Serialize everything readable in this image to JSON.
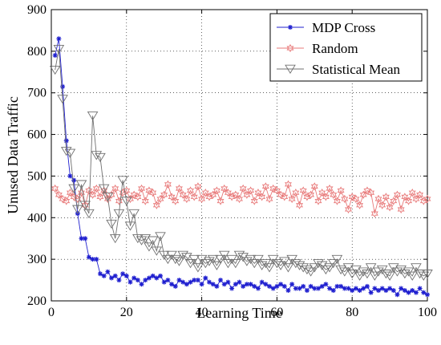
{
  "chart_data": {
    "type": "line",
    "xlabel": "Learning Time",
    "ylabel": "Unused Data Traffic",
    "xlim": [
      0,
      100
    ],
    "ylim": [
      200,
      900
    ],
    "xticks": [
      0,
      20,
      40,
      60,
      80,
      100
    ],
    "yticks": [
      200,
      300,
      400,
      500,
      600,
      700,
      800,
      900
    ],
    "x_tick_labels": [
      "0",
      "20",
      "40",
      "60",
      "80",
      "100"
    ],
    "y_tick_labels": [
      "200",
      "300",
      "400",
      "500",
      "600",
      "700",
      "800",
      "900"
    ],
    "grid": true,
    "legend_position": "top-right",
    "series": [
      {
        "name": "MDP Cross",
        "color": "#1f1fcf",
        "marker": "star",
        "x": [
          1,
          2,
          3,
          4,
          5,
          6,
          7,
          8,
          9,
          10,
          11,
          12,
          13,
          14,
          15,
          16,
          17,
          18,
          19,
          20,
          21,
          22,
          23,
          24,
          25,
          26,
          27,
          28,
          29,
          30,
          31,
          32,
          33,
          34,
          35,
          36,
          37,
          38,
          39,
          40,
          41,
          42,
          43,
          44,
          45,
          46,
          47,
          48,
          49,
          50,
          51,
          52,
          53,
          54,
          55,
          56,
          57,
          58,
          59,
          60,
          61,
          62,
          63,
          64,
          65,
          66,
          67,
          68,
          69,
          70,
          71,
          72,
          73,
          74,
          75,
          76,
          77,
          78,
          79,
          80,
          81,
          82,
          83,
          84,
          85,
          86,
          87,
          88,
          89,
          90,
          91,
          92,
          93,
          94,
          95,
          96,
          97,
          98,
          99,
          100
        ],
        "values": [
          790,
          830,
          715,
          585,
          500,
          490,
          410,
          350,
          350,
          305,
          300,
          300,
          265,
          260,
          270,
          255,
          260,
          250,
          265,
          260,
          245,
          255,
          250,
          240,
          250,
          255,
          260,
          255,
          260,
          245,
          250,
          240,
          235,
          250,
          245,
          240,
          245,
          250,
          250,
          240,
          255,
          245,
          240,
          235,
          250,
          240,
          245,
          230,
          240,
          245,
          235,
          240,
          240,
          235,
          230,
          245,
          240,
          235,
          230,
          235,
          240,
          235,
          225,
          240,
          230,
          230,
          235,
          225,
          235,
          230,
          230,
          235,
          240,
          230,
          225,
          235,
          235,
          230,
          230,
          225,
          230,
          225,
          230,
          235,
          220,
          230,
          225,
          230,
          225,
          230,
          225,
          215,
          230,
          225,
          220,
          225,
          220,
          230,
          220,
          215
        ]
      },
      {
        "name": "Random",
        "color": "#e87a7a",
        "marker": "hexagram",
        "x": [
          1,
          2,
          3,
          4,
          5,
          6,
          7,
          8,
          9,
          10,
          11,
          12,
          13,
          14,
          15,
          16,
          17,
          18,
          19,
          20,
          21,
          22,
          23,
          24,
          25,
          26,
          27,
          28,
          29,
          30,
          31,
          32,
          33,
          34,
          35,
          36,
          37,
          38,
          39,
          40,
          41,
          42,
          43,
          44,
          45,
          46,
          47,
          48,
          49,
          50,
          51,
          52,
          53,
          54,
          55,
          56,
          57,
          58,
          59,
          60,
          61,
          62,
          63,
          64,
          65,
          66,
          67,
          68,
          69,
          70,
          71,
          72,
          73,
          74,
          75,
          76,
          77,
          78,
          79,
          80,
          81,
          82,
          83,
          84,
          85,
          86,
          87,
          88,
          89,
          90,
          91,
          92,
          93,
          94,
          95,
          96,
          97,
          98,
          99,
          100
        ],
        "values": [
          470,
          455,
          445,
          440,
          460,
          450,
          445,
          460,
          430,
          465,
          455,
          470,
          450,
          465,
          445,
          455,
          470,
          440,
          460,
          465,
          445,
          455,
          450,
          470,
          440,
          465,
          460,
          430,
          445,
          455,
          480,
          450,
          440,
          470,
          455,
          445,
          465,
          450,
          475,
          445,
          460,
          450,
          455,
          465,
          440,
          470,
          460,
          450,
          455,
          445,
          470,
          455,
          465,
          440,
          460,
          450,
          475,
          445,
          470,
          465,
          455,
          450,
          480,
          445,
          460,
          430,
          465,
          450,
          455,
          475,
          440,
          460,
          450,
          470,
          455,
          440,
          465,
          445,
          420,
          450,
          445,
          430,
          455,
          465,
          460,
          410,
          445,
          430,
          450,
          425,
          440,
          455,
          420,
          450,
          440,
          460,
          445,
          455,
          440,
          445
        ]
      },
      {
        "name": "Statistical Mean",
        "color": "#707070",
        "marker": "triangle-down",
        "x": [
          1,
          2,
          3,
          4,
          5,
          6,
          7,
          8,
          9,
          10,
          11,
          12,
          13,
          14,
          15,
          16,
          17,
          18,
          19,
          20,
          21,
          22,
          23,
          24,
          25,
          26,
          27,
          28,
          29,
          30,
          31,
          32,
          33,
          34,
          35,
          36,
          37,
          38,
          39,
          40,
          41,
          42,
          43,
          44,
          45,
          46,
          47,
          48,
          49,
          50,
          51,
          52,
          53,
          54,
          55,
          56,
          57,
          58,
          59,
          60,
          61,
          62,
          63,
          64,
          65,
          66,
          67,
          68,
          69,
          70,
          71,
          72,
          73,
          74,
          75,
          76,
          77,
          78,
          79,
          80,
          81,
          82,
          83,
          84,
          85,
          86,
          87,
          88,
          89,
          90,
          91,
          92,
          93,
          94,
          95,
          96,
          97,
          98,
          99,
          100
        ],
        "values": [
          755,
          805,
          685,
          560,
          555,
          470,
          420,
          480,
          430,
          410,
          645,
          550,
          545,
          470,
          450,
          385,
          350,
          410,
          490,
          440,
          380,
          410,
          350,
          345,
          350,
          330,
          345,
          320,
          355,
          310,
          300,
          310,
          300,
          295,
          310,
          305,
          290,
          300,
          280,
          300,
          290,
          295,
          300,
          285,
          300,
          310,
          290,
          300,
          290,
          310,
          305,
          295,
          300,
          290,
          300,
          285,
          290,
          280,
          300,
          290,
          285,
          295,
          280,
          300,
          290,
          285,
          280,
          275,
          270,
          280,
          290,
          285,
          275,
          280,
          290,
          300,
          275,
          270,
          280,
          265,
          275,
          260,
          270,
          265,
          280,
          260,
          270,
          275,
          265,
          260,
          280,
          270,
          275,
          265,
          270,
          260,
          280,
          265,
          260,
          265
        ]
      }
    ]
  }
}
